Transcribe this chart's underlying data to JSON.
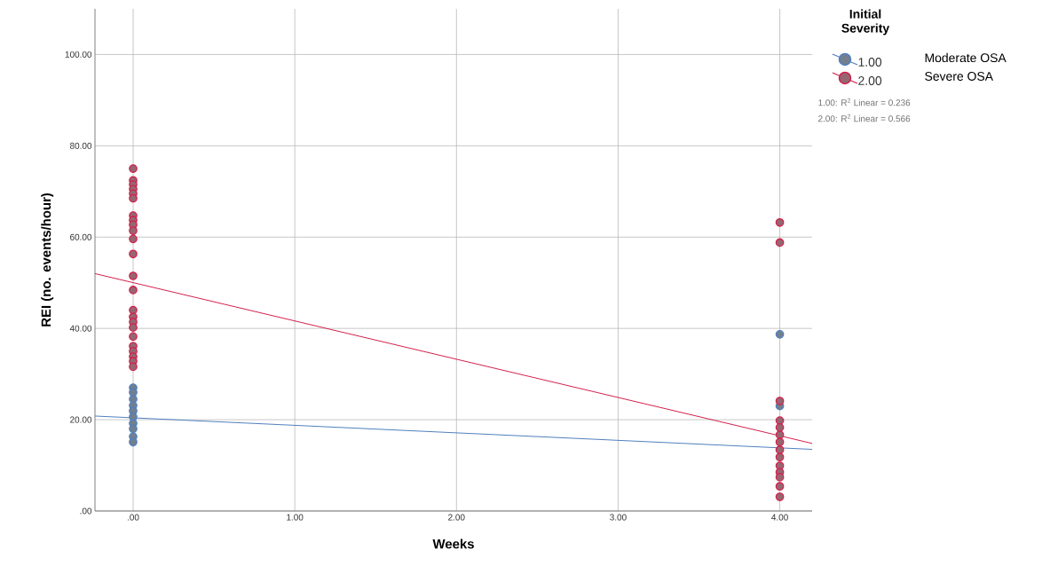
{
  "chart_data": {
    "type": "scatter",
    "xlabel": "Weeks",
    "ylabel": "REI (no. events/hour)",
    "legend_title": "Initial Severity",
    "xlim": [
      -0.236,
      4.2
    ],
    "ylim": [
      0,
      110
    ],
    "xticks": [
      {
        "value": 0,
        "label": ".00"
      },
      {
        "value": 1,
        "label": "1.00"
      },
      {
        "value": 2,
        "label": "2.00"
      },
      {
        "value": 3,
        "label": "3.00"
      },
      {
        "value": 4,
        "label": "4.00"
      }
    ],
    "yticks": [
      {
        "value": 0,
        "label": ".00"
      },
      {
        "value": 20,
        "label": "20.00"
      },
      {
        "value": 40,
        "label": "40.00"
      },
      {
        "value": 60,
        "label": "60.00"
      },
      {
        "value": 80,
        "label": "80.00"
      },
      {
        "value": 100,
        "label": "100.00"
      }
    ],
    "grid": true,
    "legend": "right",
    "series": [
      {
        "name": "1.00",
        "marker": "circle",
        "color": "#4f7fbf",
        "x": [
          0,
          0,
          0,
          0,
          0,
          0,
          0,
          0,
          0,
          0,
          4,
          4
        ],
        "values": [
          27,
          26,
          24.5,
          23.1,
          21.9,
          20.6,
          19.2,
          18,
          16.3,
          15.1,
          38.7,
          23
        ]
      },
      {
        "name": "2.00",
        "marker": "circle",
        "color": "#d41f4a",
        "x": [
          0,
          0,
          0,
          0,
          0,
          0,
          0,
          0,
          0,
          0,
          0,
          0,
          0,
          0,
          0,
          0,
          0,
          0,
          0,
          0,
          0,
          0,
          0,
          0,
          4,
          4,
          4,
          4,
          4,
          4,
          4,
          4,
          4,
          4,
          4,
          4,
          4,
          4
        ],
        "values": [
          75,
          72.4,
          71.5,
          70.5,
          69.5,
          68.5,
          64.7,
          63.7,
          62.7,
          61.4,
          59.6,
          56.3,
          51.5,
          48.4,
          44,
          42.5,
          41.4,
          40.2,
          38.2,
          36.1,
          35,
          33.8,
          32.8,
          31.6,
          63.2,
          58.8,
          24.1,
          19.8,
          18.3,
          16.7,
          15.1,
          13.4,
          11.8,
          9.9,
          8.5,
          7.4,
          5.4,
          3.1
        ]
      },
      {
        "type": "line",
        "marker": "none",
        "color": "#4f7fbf",
        "x": [
          -0.236,
          4.2
        ],
        "values": [
          20.8,
          13.5
        ]
      },
      {
        "type": "line",
        "marker": "none",
        "color": "#d41f4a",
        "x": [
          -0.236,
          4.2
        ],
        "values": [
          52.0,
          14.8
        ]
      }
    ],
    "annotations": [
      "Moderate OSA",
      "Severe OSA",
      "1.00: R$^{2}$ Linear = 0.236",
      "2.00: R$^{2}$ Linear = 0.566"
    ]
  }
}
